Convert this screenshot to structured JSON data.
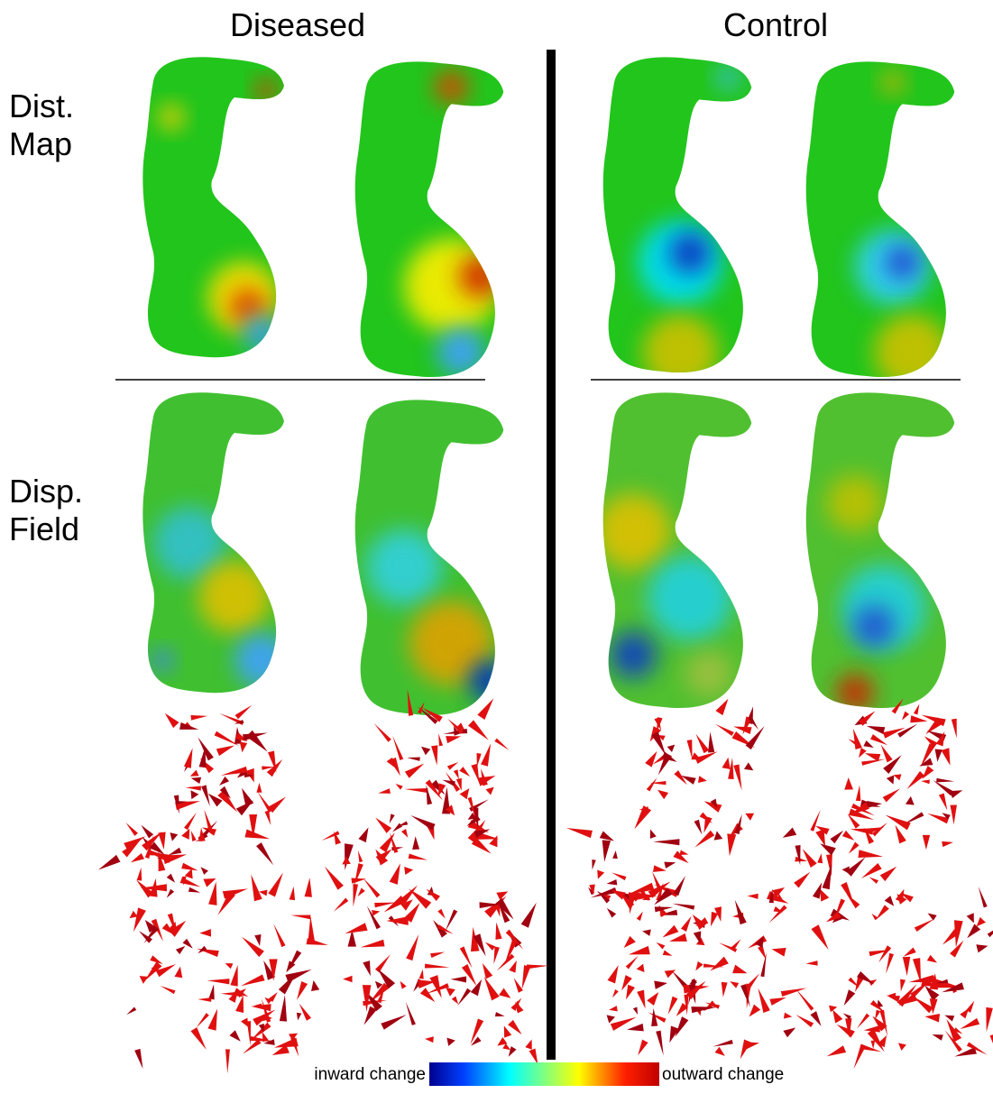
{
  "columns": [
    "Diseased",
    "Control"
  ],
  "rows": [
    {
      "label": [
        "Dist.",
        "Map"
      ]
    },
    {
      "label": [
        "Disp.",
        "Field"
      ]
    }
  ],
  "colorbar": {
    "left": "inward change",
    "right": "outward change"
  }
}
